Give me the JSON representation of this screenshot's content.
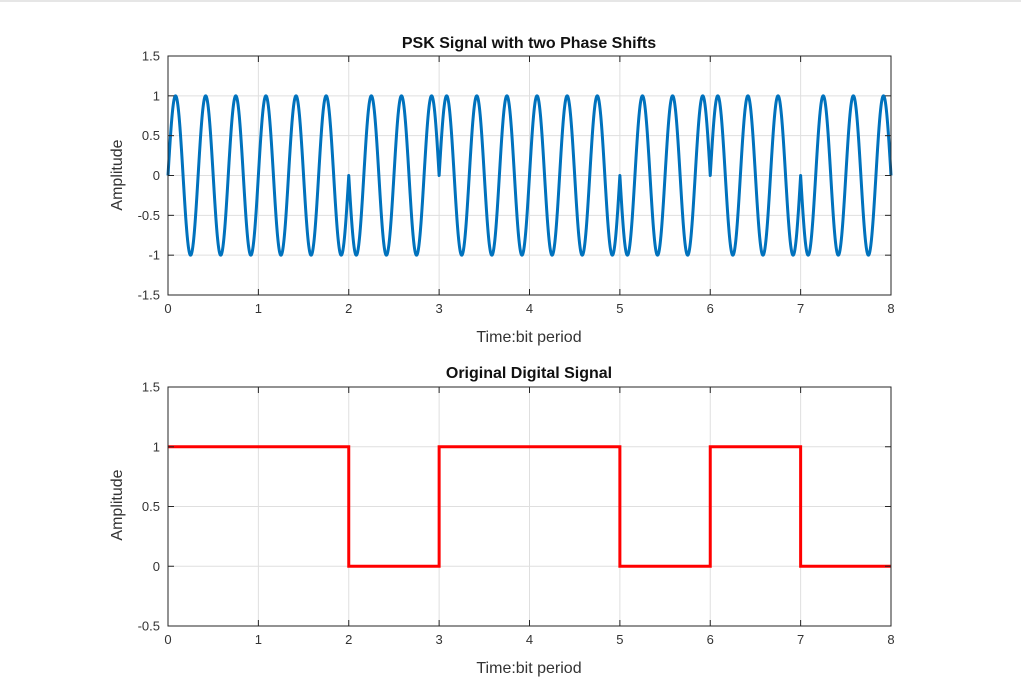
{
  "colors": {
    "psk_line": "#0072BD",
    "digital_line": "#FF0000",
    "grid": "#DFDFDF",
    "axes": "#262626"
  },
  "chart_data": [
    {
      "type": "line",
      "title": "PSK Signal with two Phase Shifts",
      "xlabel": "Time:bit period",
      "ylabel": "Amplitude",
      "xlim": [
        0,
        8
      ],
      "ylim": [
        -1.5,
        1.5
      ],
      "xticks": [
        "0",
        "1",
        "2",
        "3",
        "4",
        "5",
        "6",
        "7",
        "8"
      ],
      "yticks": [
        "-1.5",
        "-1",
        "-0.5",
        "0",
        "0.5",
        "1",
        "1.5"
      ],
      "grid": true,
      "bits": [
        1,
        1,
        0,
        1,
        1,
        0,
        1,
        0
      ],
      "carrier_cycles_per_bit": 3,
      "series": [
        {
          "values_formula": "sin(2*pi*3*t) if bit=1 else -sin(2*pi*3*t)"
        }
      ]
    },
    {
      "type": "line",
      "title": "Original Digital Signal",
      "xlabel": "Time:bit period",
      "ylabel": "Amplitude",
      "xlim": [
        0,
        8
      ],
      "ylim": [
        -0.5,
        1.5
      ],
      "xticks": [
        "0",
        "1",
        "2",
        "3",
        "4",
        "5",
        "6",
        "7",
        "8"
      ],
      "yticks": [
        "-0.5",
        "0",
        "0.5",
        "1",
        "1.5"
      ],
      "grid": true,
      "series": [
        {
          "x": [
            0,
            2,
            2,
            3,
            3,
            5,
            5,
            6,
            6,
            7,
            7,
            8
          ],
          "y": [
            1,
            1,
            0,
            0,
            1,
            1,
            0,
            0,
            1,
            1,
            0,
            0
          ]
        }
      ]
    }
  ]
}
